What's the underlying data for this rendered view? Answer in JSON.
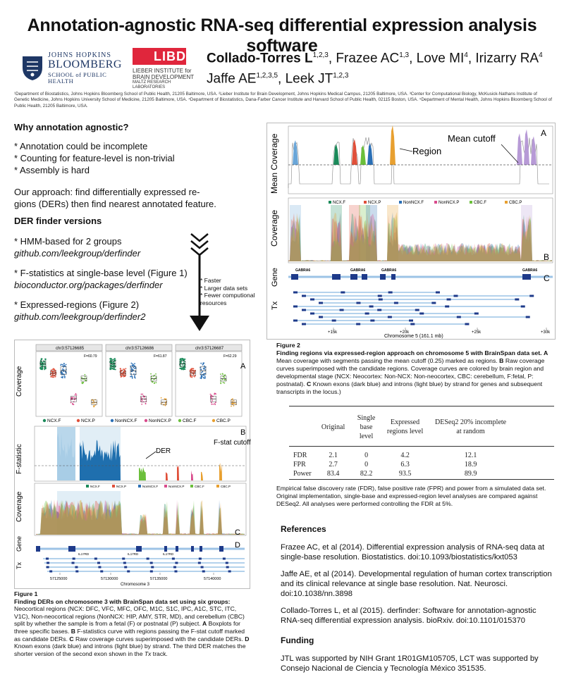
{
  "title": "Annotation-agnostic RNA-seq differential expression analysis software",
  "logos": {
    "jh_line1": "JOHNS HOPKINS",
    "jh_line2": "BLOOMBERG",
    "jh_line3": "SCHOOL of PUBLIC HEALTH",
    "libd_mark": "LIBD",
    "libd_line1": "LIEBER INSTITUTE for",
    "libd_line2": "BRAIN DEVELOPMENT",
    "libd_line3": "MALTZ RESEARCH LABORATORIES"
  },
  "authors": {
    "a1": "Collado-Torres L",
    "a1_sup": "1,2,3",
    "a2": ", Frazee AC",
    "a2_sup": "1,3",
    "a3": ", Love MI",
    "a3_sup": "4",
    "a4": ", Irizarry RA",
    "a4_sup": "4",
    "a5": "Jaffe AE",
    "a5_sup": "1,2,3,5",
    "a6": ", Leek JT",
    "a6_sup": "1,2,3"
  },
  "affiliations": "¹Department of Biostatistics, Johns Hopkins Bloomberg School of Public Health, 21205 Baltimore, USA. ²Lieber Institute for Brain Development, Johns Hopkins Medical Campus, 21205 Baltimore, USA. ³Center for Computational Biology, McKusick-Nathans Institute of Genetic Medicine, Johns Hopkins University School of Medicine, 21205 Baltimore, USA. ⁴Department of Biostatistics, Dana-Farber Cancer Institute and Harvard School of Public Health, 02115 Boston, USA. ⁵Department of Mental Health, Johns Hopkins Bloomberg School of Public Health, 21205 Baltimore, USA.",
  "why": {
    "heading": "Why annotation agnostic?",
    "b1": "* Annotation could be incomplete",
    "b2": "* Counting for feature-level is non-trivial",
    "b3": "* Assembly is hard",
    "approach1": "Our approach: find differentially expressed re-",
    "approach2": "gions (DERs) then find nearest annotated feature."
  },
  "versions": {
    "heading": "DER finder versions",
    "v1": "* HMM-based for 2 groups",
    "v1_url": "github.com/leekgroup/derfinder",
    "v2": "* F-statistics at single-base level (Figure 1)",
    "v2_url": "bioconductor.org/packages/derfinder",
    "v3": "* Expressed-regions (Figure 2)",
    "v3_url": "github.com/leekgroup/derfinder2"
  },
  "speed": {
    "s1": "* Faster",
    "s2": "* Larger data sets",
    "s3": "* Fewer computional",
    "s4": "resources"
  },
  "fig1": {
    "box_titles": [
      "chr3:57126685",
      "chr3:57126686",
      "chr3:57126687"
    ],
    "box_f": [
      "F=60.79",
      "F=61.87",
      "F=62.29"
    ],
    "legend_a": [
      "NCX.F",
      "NCX.P",
      "NonNCX.F",
      "NonNCX.P",
      "CBC.F",
      "CBC.P"
    ],
    "ylab_coverage": "Coverage",
    "ylab_fstat": "F-statistic",
    "ylab_gene": "Gene",
    "ylab_tx": "Tx",
    "der_label": "DER",
    "fstat_cutoff": "F-stat cutoff",
    "panel_letters": [
      "A",
      "B",
      "C",
      "D"
    ],
    "gene_name": "IL17RD",
    "x_ticks": [
      "57125000",
      "57130000",
      "57135000",
      "57140000"
    ],
    "x_label": "Chromosome 3",
    "caption_title": "Figure 1",
    "caption_bold": "Finding DERs on chromosome 3 with BrainSpan data set using six groups:",
    "caption_body": "Neocortical regions (NCX: DFC, VFC, MFC, OFC, M1C, S1C, IPC, A1C, STC, ITC, V1C), Non-neocortical regions (NonNCX: HIP, AMY, STR, MD), and cerebellum (CBC) split by whether the sample is from a fetal (F) or postnatal (P) subject.",
    "caption_a": "A",
    "caption_a_text": " Boxplots for three specific bases.",
    "caption_b": "B",
    "caption_b_text": " F-statistics curve with regions passing the F-stat cutoff marked as candidate DERs.",
    "caption_c": "C",
    "caption_c_text": " Raw coverage curves superimposed with the candidate DERs.",
    "caption_d": "D",
    "caption_d_text": " Known exons (dark blue) and introns (light blue) by strand. The third DER matches the shorter version of the second exon shown in the ",
    "caption_tx": "Tx",
    "caption_end": " track."
  },
  "fig2": {
    "ylab_mean": "Mean Coverage",
    "ylab_cov": "Coverage",
    "ylab_gene": "Gene",
    "ylab_tx": "Tx",
    "mean_cutoff": "Mean cutoff",
    "region_label": "Region",
    "panel_letters": [
      "A",
      "B",
      "C"
    ],
    "gene_name": "GABRA6",
    "x_ticks": [
      "+15k",
      "+20k",
      "+25k",
      "+30k"
    ],
    "x_label": "Chromosome 5 (161.1 mb)",
    "caption_title": "Figure 2",
    "caption_bold": "Finding regions via expressed-region approach on chromosome 5 with BrainSpan data set.",
    "caption_a": "A",
    "caption_a_text": " Mean coverage with segments passing the mean cutoff (0.25) marked as regions.",
    "caption_b": "B",
    "caption_b_text": " Raw coverage curves superimposed with the candidate regions. Coverage curves are colored by brain region and developmental stage (NCX: Neocortex: Non-NCX: Non-neocortex, CBC: cerebellum, F:fetal, P: postnatal).",
    "caption_c": "C",
    "caption_c_text": " Known exons (dark blue) and introns (light blue) by strand for genes and subsequent transcripts in the locus.)"
  },
  "results_table": {
    "headers": [
      "",
      "Original",
      "Single base level",
      "Expressed regions level",
      "DESeq2 20% incomplete at random"
    ],
    "rows": [
      [
        "FDR",
        "2.1",
        "0",
        "4.2",
        "12.1"
      ],
      [
        "FPR",
        "2.7",
        "0",
        "6.3",
        "18.9"
      ],
      [
        "Power",
        "83.4",
        "82.2",
        "93.5",
        "89.9"
      ]
    ],
    "note": "Empirical false discovery rate (FDR), false positive rate (FPR) and power from a simulated data set. Original implementation, single-base and expressed-region level analyses are compared against DESeq2. All analyses were performed controlling the FDR at 5%."
  },
  "references": {
    "heading": "References",
    "r1": "Frazee AC, et al (2014). Differential expression analysis of RNA-seq data at single-base resolution. Biostatistics. doi:10.1093/biostatistics/kxt053",
    "r2": "Jaffe AE, et al (2014). Developmental regulation of human cortex transcription and its clinical relevance at single base resolution. Nat. Neurosci. doi:10.1038/nn.3898",
    "r3": "Collado-Torres L, et al (2015). derfinder: Software for annotation-agnostic RNA-seq differential expression analysis. bioRxiv. doi:10.1101/015370"
  },
  "funding": {
    "heading": "Funding",
    "text": "JTL was supported by NIH Grant 1R01GM105705, LCT was supported by Consejo Nacional de Ciencia y Tecnología México 351535."
  },
  "colors": {
    "ncx_f": "#1b8a5a",
    "ncx_p": "#e0503a",
    "nonncx_f": "#2a6fb5",
    "nonncx_p": "#d94b8c",
    "cbc_f": "#6bbf3b",
    "cbc_p": "#e8a030",
    "exon": "#1e3a8a",
    "intron": "#9cc3e6",
    "region_purple": "#b79ad6"
  }
}
